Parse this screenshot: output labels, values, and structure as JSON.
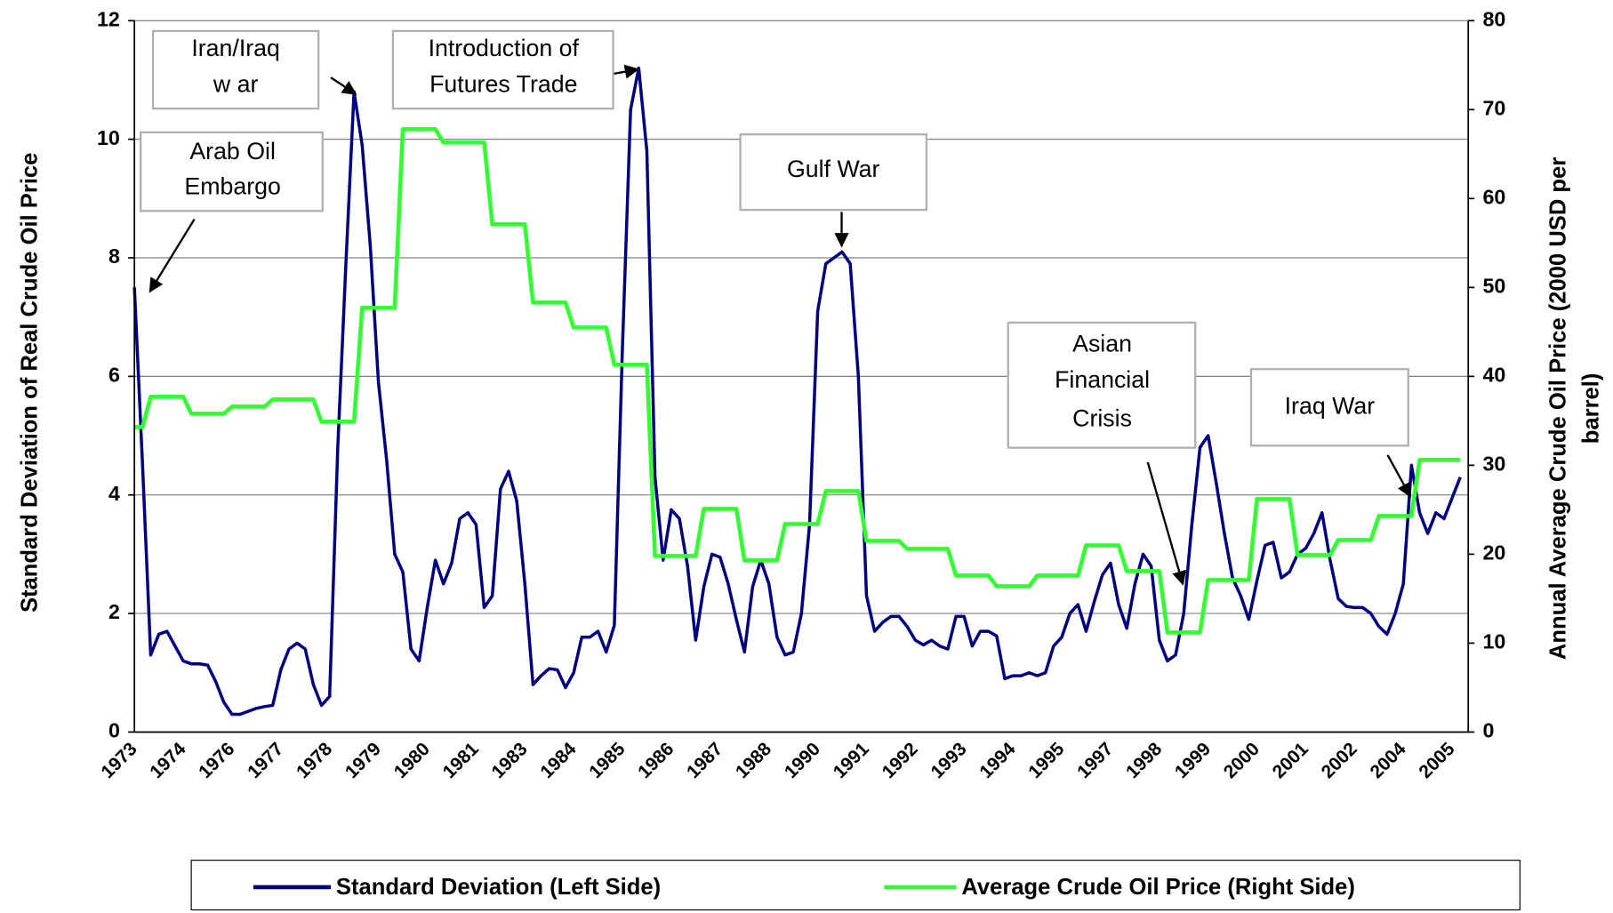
{
  "chart_data": {
    "type": "line",
    "categories": [
      "1973",
      null,
      null,
      null,
      null,
      null,
      "1974",
      null,
      null,
      null,
      null,
      null,
      "1976",
      null,
      null,
      null,
      null,
      null,
      "1977",
      null,
      null,
      null,
      null,
      null,
      "1978",
      null,
      null,
      null,
      null,
      null,
      "1979",
      null,
      null,
      null,
      null,
      null,
      "1980",
      null,
      null,
      null,
      null,
      null,
      "1981",
      null,
      null,
      null,
      null,
      null,
      "1983",
      null,
      null,
      null,
      null,
      null,
      "1984",
      null,
      null,
      null,
      null,
      null,
      "1985",
      null,
      null,
      null,
      null,
      null,
      "1986",
      null,
      null,
      null,
      null,
      null,
      "1987",
      null,
      null,
      null,
      null,
      null,
      "1988",
      null,
      null,
      null,
      null,
      null,
      "1990",
      null,
      null,
      null,
      null,
      null,
      "1991",
      null,
      null,
      null,
      null,
      null,
      "1992",
      null,
      null,
      null,
      null,
      null,
      "1993",
      null,
      null,
      null,
      null,
      null,
      "1994",
      null,
      null,
      null,
      null,
      null,
      "1995",
      null,
      null,
      null,
      null,
      null,
      "1997",
      null,
      null,
      null,
      null,
      null,
      "1998",
      null,
      null,
      null,
      null,
      null,
      "1999",
      null,
      null,
      null,
      null,
      null,
      "2000",
      null,
      null,
      null,
      null,
      null,
      "2001",
      null,
      null,
      null,
      null,
      null,
      "2002",
      null,
      null,
      null,
      null,
      null,
      "2004",
      null,
      null,
      null,
      null,
      null,
      "2005",
      null
    ],
    "series": [
      {
        "name": "Standard Deviation (Left Side)",
        "color": "#000080",
        "axis": "y",
        "values": [
          7.5,
          4.5,
          1.3,
          1.65,
          1.7,
          1.45,
          1.2,
          1.15,
          1.15,
          1.13,
          0.85,
          0.5,
          0.3,
          0.3,
          0.35,
          0.4,
          0.43,
          0.45,
          1.05,
          1.4,
          1.5,
          1.4,
          0.8,
          0.45,
          0.6,
          4.8,
          7.9,
          10.8,
          9.9,
          8.2,
          5.9,
          4.6,
          3.0,
          2.7,
          1.4,
          1.2,
          2.1,
          2.9,
          2.5,
          2.85,
          3.6,
          3.7,
          3.5,
          2.1,
          2.3,
          4.1,
          4.4,
          3.9,
          2.5,
          0.8,
          0.95,
          1.07,
          1.05,
          0.75,
          1.0,
          1.6,
          1.6,
          1.7,
          1.35,
          1.8,
          6.5,
          10.5,
          11.2,
          9.8,
          4.3,
          2.9,
          3.75,
          3.6,
          2.8,
          1.55,
          2.45,
          3.0,
          2.95,
          2.5,
          1.9,
          1.35,
          2.45,
          2.9,
          2.5,
          1.6,
          1.3,
          1.35,
          2.0,
          3.5,
          7.1,
          7.9,
          8.0,
          8.1,
          7.9,
          6.0,
          2.3,
          1.7,
          1.85,
          1.95,
          1.95,
          1.78,
          1.55,
          1.47,
          1.55,
          1.45,
          1.4,
          1.95,
          1.95,
          1.45,
          1.7,
          1.7,
          1.62,
          0.9,
          0.95,
          0.95,
          1.0,
          0.95,
          1.0,
          1.45,
          1.6,
          2.0,
          2.15,
          1.7,
          2.2,
          2.65,
          2.85,
          2.15,
          1.75,
          2.5,
          3.0,
          2.8,
          1.55,
          1.2,
          1.3,
          2.0,
          3.5,
          4.8,
          5.0,
          4.2,
          3.35,
          2.6,
          2.3,
          1.9,
          2.55,
          3.15,
          3.2,
          2.6,
          2.7,
          3.0,
          3.1,
          3.35,
          3.7,
          2.9,
          2.25,
          2.12,
          2.1,
          2.1,
          2.0,
          1.78,
          1.65,
          2.0,
          2.5,
          4.5,
          3.7,
          3.35,
          3.7,
          3.6,
          3.95,
          4.3
        ]
      },
      {
        "name": "Average Crude Oil Price (Right Side)",
        "color": "#33ff33",
        "axis": "y2",
        "values": [
          34.3,
          34.3,
          37.7,
          37.7,
          37.7,
          37.7,
          37.7,
          35.8,
          35.8,
          35.8,
          35.8,
          35.8,
          36.6,
          36.6,
          36.6,
          36.6,
          36.6,
          37.4,
          37.4,
          37.4,
          37.4,
          37.4,
          37.4,
          34.9,
          34.9,
          34.9,
          34.9,
          34.9,
          47.7,
          47.7,
          47.7,
          47.7,
          47.7,
          67.8,
          67.8,
          67.8,
          67.8,
          67.8,
          66.3,
          66.3,
          66.3,
          66.3,
          66.3,
          66.3,
          57.1,
          57.1,
          57.1,
          57.1,
          57.1,
          48.3,
          48.3,
          48.3,
          48.3,
          48.3,
          45.5,
          45.5,
          45.5,
          45.5,
          45.5,
          41.3,
          41.3,
          41.3,
          41.3,
          41.3,
          19.8,
          19.8,
          19.8,
          19.8,
          19.8,
          19.8,
          25.1,
          25.1,
          25.1,
          25.1,
          25.1,
          19.3,
          19.3,
          19.3,
          19.3,
          19.3,
          23.4,
          23.4,
          23.4,
          23.4,
          23.4,
          27.1,
          27.1,
          27.1,
          27.1,
          27.1,
          21.5,
          21.5,
          21.5,
          21.5,
          21.5,
          20.6,
          20.6,
          20.6,
          20.6,
          20.6,
          20.6,
          17.6,
          17.6,
          17.6,
          17.6,
          17.6,
          16.4,
          16.4,
          16.4,
          16.4,
          16.4,
          17.6,
          17.6,
          17.6,
          17.6,
          17.6,
          17.6,
          21.0,
          21.0,
          21.0,
          21.0,
          21.0,
          18.1,
          18.1,
          18.1,
          18.1,
          18.1,
          11.2,
          11.2,
          11.2,
          11.2,
          11.2,
          17.1,
          17.1,
          17.1,
          17.1,
          17.1,
          17.1,
          26.2,
          26.2,
          26.2,
          26.2,
          26.2,
          19.9,
          19.9,
          19.9,
          19.9,
          19.9,
          21.6,
          21.6,
          21.6,
          21.6,
          21.6,
          24.3,
          24.3,
          24.3,
          24.3,
          24.3,
          30.6,
          30.6,
          30.6,
          30.6,
          30.6,
          30.6
        ]
      }
    ],
    "ylim": [
      0,
      12
    ],
    "yticks": [
      0,
      2,
      4,
      6,
      8,
      10,
      12
    ],
    "y2lim": [
      0,
      80
    ],
    "y2ticks": [
      0,
      10,
      20,
      30,
      40,
      50,
      60,
      70,
      80
    ],
    "grid": true,
    "ylabel": "Standard Deviation of Real Crude Oil Price",
    "y2label": [
      "Annual Average Crude Oil Price (2000 USD per",
      "barrel)"
    ],
    "legend": "bottom",
    "annotations": [
      {
        "lines": [
          "Arab Oil",
          "Embargo"
        ]
      },
      {
        "lines": [
          "Iran/Iraq",
          "w ar"
        ]
      },
      {
        "lines": [
          "Introduction of",
          "Futures Trade"
        ]
      },
      {
        "lines": [
          "Gulf War"
        ]
      },
      {
        "lines": [
          "Asian",
          "Financial",
          "Crisis"
        ]
      },
      {
        "lines": [
          "Iraq War"
        ]
      }
    ]
  }
}
